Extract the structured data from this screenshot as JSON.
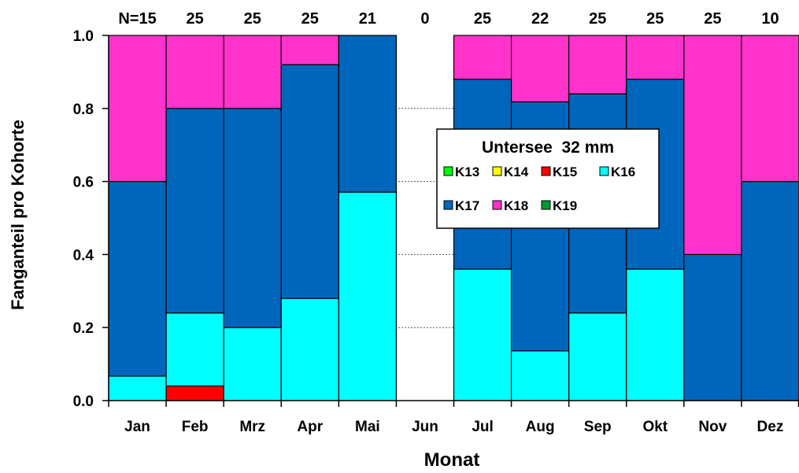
{
  "chart_data": {
    "type": "bar",
    "stacked": true,
    "title": "Untersee  32 mm",
    "xlabel": "Monat",
    "ylabel": "Fanganteil pro Kohorte",
    "ylim": [
      0,
      1.0
    ],
    "yticks": [
      "0.0",
      "0.2",
      "0.4",
      "0.6",
      "0.8",
      "1.0"
    ],
    "grid": "dotted horizontal lines at 0.2, 0.4, 0.6, 0.8 (visible in empty Jun column)",
    "legend_placement": "center-right",
    "categories": [
      "Jan",
      "Feb",
      "Mrz",
      "Apr",
      "Mai",
      "Jun",
      "Jul",
      "Aug",
      "Sep",
      "Okt",
      "Nov",
      "Dez"
    ],
    "n_labels": [
      "N=15",
      "25",
      "25",
      "25",
      "21",
      "0",
      "25",
      "22",
      "25",
      "25",
      "25",
      "10"
    ],
    "series": [
      {
        "name": "K13",
        "color": "#00ff00",
        "values": [
          0,
          0,
          0,
          0,
          0,
          0,
          0,
          0,
          0,
          0,
          0,
          0
        ]
      },
      {
        "name": "K14",
        "color": "#ffff00",
        "values": [
          0,
          0,
          0,
          0,
          0,
          0,
          0,
          0,
          0,
          0,
          0,
          0
        ]
      },
      {
        "name": "K15",
        "color": "#ff0000",
        "values": [
          0,
          0.04,
          0,
          0,
          0,
          0,
          0,
          0,
          0,
          0,
          0,
          0
        ]
      },
      {
        "name": "K16",
        "color": "#00ffff",
        "values": [
          0.067,
          0.2,
          0.2,
          0.28,
          0.571,
          0,
          0.36,
          0.136,
          0.24,
          0.36,
          0,
          0
        ]
      },
      {
        "name": "K17",
        "color": "#0066bb",
        "values": [
          0.533,
          0.56,
          0.6,
          0.64,
          0.429,
          0,
          0.52,
          0.682,
          0.6,
          0.52,
          0.4,
          0.6
        ]
      },
      {
        "name": "K18",
        "color": "#ff33cc",
        "values": [
          0.4,
          0.2,
          0.2,
          0.08,
          0,
          0,
          0.12,
          0.182,
          0.16,
          0.12,
          0.6,
          0.4
        ]
      },
      {
        "name": "K19",
        "color": "#009933",
        "values": [
          0,
          0,
          0,
          0,
          0,
          0,
          0,
          0,
          0,
          0,
          0,
          0
        ]
      }
    ]
  }
}
